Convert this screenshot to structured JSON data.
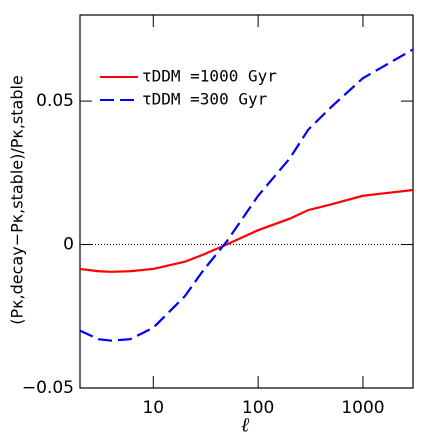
{
  "chart_data": {
    "type": "line",
    "xlabel": "ℓ",
    "ylabel": "(Pκ,decay−Pκ,stable)/Pκ,stable",
    "x": [
      2,
      3,
      4,
      6,
      10,
      20,
      30,
      50,
      100,
      200,
      300,
      500,
      1000,
      3000
    ],
    "series": [
      {
        "name": "τDDM =1000 Gyr",
        "color": "#ff0000",
        "dash": "solid",
        "values": [
          -0.0085,
          -0.0093,
          -0.0095,
          -0.0093,
          -0.0085,
          -0.006,
          -0.0035,
          0,
          0.005,
          0.009,
          0.012,
          0.014,
          0.017,
          0.019
        ]
      },
      {
        "name": "τDDM =300 Gyr",
        "color": "#0000ff",
        "dash": "dashed",
        "values": [
          -0.03,
          -0.033,
          -0.0335,
          -0.033,
          -0.029,
          -0.018,
          -0.009,
          0.001,
          0.017,
          0.03,
          0.04,
          0.048,
          0.058,
          0.068
        ]
      }
    ],
    "xlim": [
      2,
      3000
    ],
    "xscale": "log",
    "xticks": [
      10,
      100,
      1000
    ],
    "ylim": [
      -0.05,
      0.08
    ],
    "yticks": [
      {
        "value": -0.05,
        "label": "−0.05"
      },
      0,
      0.05
    ],
    "reference_line": 0,
    "legend": "upper left"
  }
}
